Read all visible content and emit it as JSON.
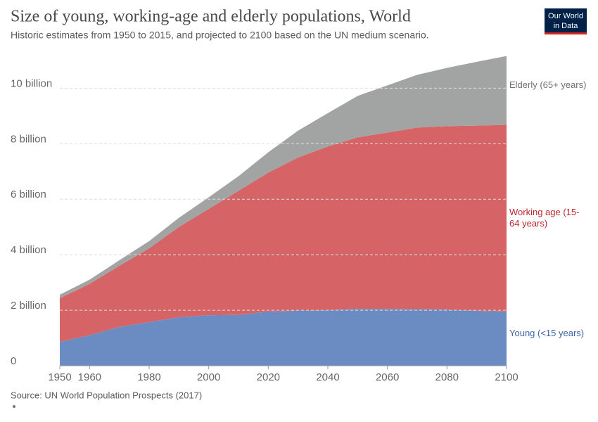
{
  "chart_data": {
    "type": "stacked_area",
    "title": "Size of young, working-age and elderly populations, World",
    "subtitle": "Historic estimates from 1950 to 2015, and projected to 2100 based on the UN medium scenario.",
    "source": "Source: UN World Population Prospects (2017)",
    "logo": [
      "Our World",
      "in Data"
    ],
    "x": [
      1950,
      1960,
      1970,
      1980,
      1990,
      2000,
      2010,
      2020,
      2030,
      2040,
      2050,
      2060,
      2070,
      2080,
      2090,
      2100
    ],
    "series": [
      {
        "name": "Young (<15 years)",
        "color": "#6b8cc2",
        "label_color": "#3c64a6",
        "values": [
          0.86,
          1.1,
          1.4,
          1.57,
          1.75,
          1.82,
          1.83,
          1.95,
          1.99,
          2.0,
          2.05,
          2.05,
          2.04,
          2.02,
          1.98,
          1.95
        ]
      },
      {
        "name": "Working age (15-64 years)",
        "color": "#d66466",
        "label_color": "#c0282e",
        "values": [
          1.57,
          1.85,
          2.2,
          2.66,
          3.25,
          3.83,
          4.47,
          5.01,
          5.51,
          5.9,
          6.18,
          6.35,
          6.54,
          6.61,
          6.67,
          6.73
        ]
      },
      {
        "name": "Elderly (65+ years)",
        "color": "#a2a4a3",
        "label_color": "#707070",
        "values": [
          0.13,
          0.15,
          0.2,
          0.26,
          0.33,
          0.42,
          0.53,
          0.73,
          0.97,
          1.2,
          1.49,
          1.7,
          1.9,
          2.1,
          2.3,
          2.48
        ]
      }
    ],
    "xlim": [
      1950,
      2100
    ],
    "xticks": [
      1950,
      1960,
      1980,
      2000,
      2020,
      2040,
      2060,
      2080,
      2100
    ],
    "ylim": [
      0,
      11.2
    ],
    "yticks": [
      0,
      {
        "value": 2,
        "label": "2 billion"
      },
      {
        "value": 4,
        "label": "4 billion"
      },
      {
        "value": 6,
        "label": "6 billion"
      },
      {
        "value": 8,
        "label": "8 billion"
      },
      {
        "value": 10,
        "label": "10 billion"
      }
    ],
    "grid": true
  }
}
